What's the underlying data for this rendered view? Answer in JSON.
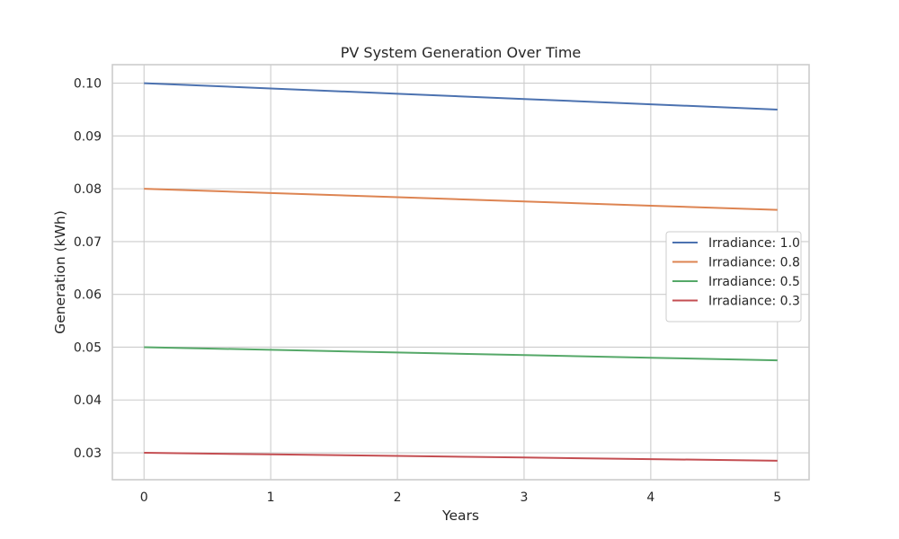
{
  "chart_data": {
    "type": "line",
    "title": "PV System Generation Over Time",
    "xlabel": "Years",
    "ylabel": "Generation (kWh)",
    "x": [
      0,
      1,
      2,
      3,
      4,
      5
    ],
    "xlim": [
      -0.25,
      5.25
    ],
    "ylim": [
      0.0249,
      0.1035
    ],
    "x_ticks": [
      "0",
      "1",
      "2",
      "3",
      "4",
      "5"
    ],
    "y_ticks": [
      "0.03",
      "0.04",
      "0.05",
      "0.06",
      "0.07",
      "0.08",
      "0.09",
      "0.10"
    ],
    "grid": true,
    "legend_position": "right",
    "series": [
      {
        "name": "Irradiance: 1.0",
        "color": "#4c72b0",
        "values": [
          0.1,
          0.099,
          0.098,
          0.097,
          0.096,
          0.095
        ]
      },
      {
        "name": "Irradiance: 0.8",
        "color": "#dd8452",
        "values": [
          0.08,
          0.0792,
          0.0784,
          0.0776,
          0.0768,
          0.076
        ]
      },
      {
        "name": "Irradiance: 0.5",
        "color": "#55a868",
        "values": [
          0.05,
          0.0495,
          0.049,
          0.0485,
          0.048,
          0.0475
        ]
      },
      {
        "name": "Irradiance: 0.3",
        "color": "#c44e52",
        "values": [
          0.03,
          0.0297,
          0.0294,
          0.0291,
          0.0288,
          0.0285
        ]
      }
    ]
  }
}
